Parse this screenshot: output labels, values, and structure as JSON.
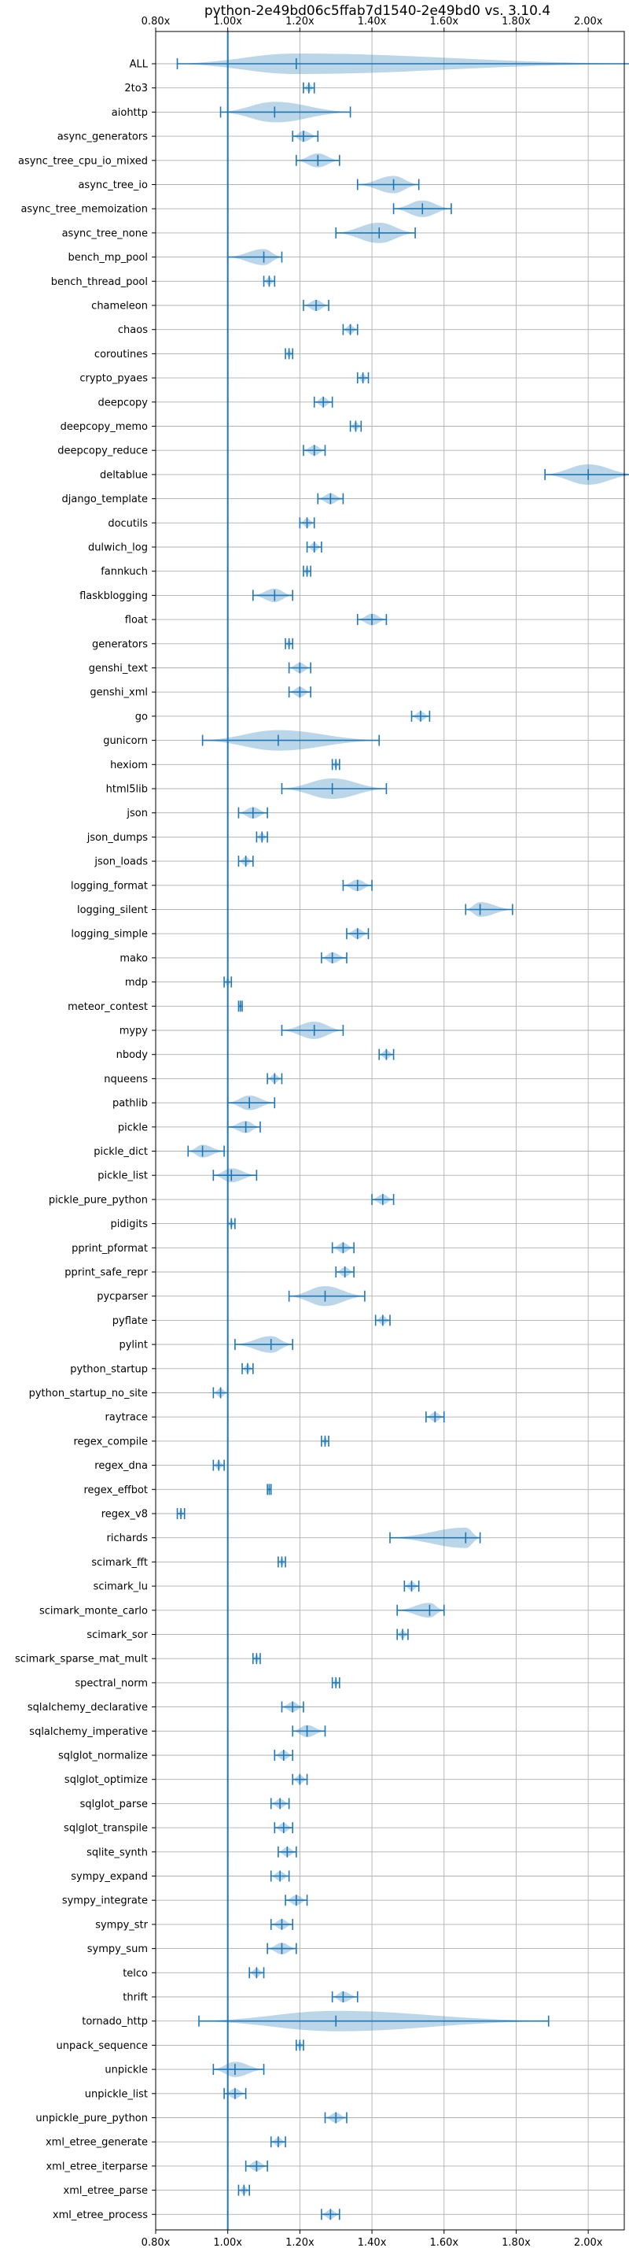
{
  "chart_data": {
    "type": "violin",
    "orientation": "horizontal",
    "title": "python-2e49bd06c5ffab7d1540-2e49bd0 vs. 3.10.4",
    "xlim": [
      0.8,
      2.1
    ],
    "xticks": [
      0.8,
      1.0,
      1.2,
      1.4,
      1.6,
      1.8,
      2.0
    ],
    "xtick_labels": [
      "0.80x",
      "1.00x",
      "1.20x",
      "1.40x",
      "1.60x",
      "1.80x",
      "2.00x"
    ],
    "x_ticks_top_and_bottom": true,
    "grid": true,
    "baseline": 1.0,
    "color": "#1f77b4",
    "categories": [
      {
        "name": "ALL",
        "min": 0.86,
        "max": 2.13,
        "median": 1.19
      },
      {
        "name": "2to3",
        "min": 1.21,
        "max": 1.24,
        "median": 1.225
      },
      {
        "name": "aiohttp",
        "min": 0.98,
        "max": 1.34,
        "median": 1.13
      },
      {
        "name": "async_generators",
        "min": 1.18,
        "max": 1.25,
        "median": 1.21
      },
      {
        "name": "async_tree_cpu_io_mixed",
        "min": 1.19,
        "max": 1.31,
        "median": 1.25
      },
      {
        "name": "async_tree_io",
        "min": 1.36,
        "max": 1.53,
        "median": 1.46
      },
      {
        "name": "async_tree_memoization",
        "min": 1.46,
        "max": 1.62,
        "median": 1.54
      },
      {
        "name": "async_tree_none",
        "min": 1.3,
        "max": 1.52,
        "median": 1.42
      },
      {
        "name": "bench_mp_pool",
        "min": 1.0,
        "max": 1.15,
        "median": 1.1
      },
      {
        "name": "bench_thread_pool",
        "min": 1.1,
        "max": 1.13,
        "median": 1.115
      },
      {
        "name": "chameleon",
        "min": 1.21,
        "max": 1.28,
        "median": 1.245
      },
      {
        "name": "chaos",
        "min": 1.32,
        "max": 1.36,
        "median": 1.34
      },
      {
        "name": "coroutines",
        "min": 1.16,
        "max": 1.18,
        "median": 1.17
      },
      {
        "name": "crypto_pyaes",
        "min": 1.36,
        "max": 1.39,
        "median": 1.375
      },
      {
        "name": "deepcopy",
        "min": 1.24,
        "max": 1.29,
        "median": 1.265
      },
      {
        "name": "deepcopy_memo",
        "min": 1.34,
        "max": 1.37,
        "median": 1.355
      },
      {
        "name": "deepcopy_reduce",
        "min": 1.21,
        "max": 1.27,
        "median": 1.24
      },
      {
        "name": "deltablue",
        "min": 1.88,
        "max": 2.13,
        "median": 2.0
      },
      {
        "name": "django_template",
        "min": 1.25,
        "max": 1.32,
        "median": 1.285
      },
      {
        "name": "docutils",
        "min": 1.2,
        "max": 1.24,
        "median": 1.22
      },
      {
        "name": "dulwich_log",
        "min": 1.22,
        "max": 1.26,
        "median": 1.24
      },
      {
        "name": "fannkuch",
        "min": 1.21,
        "max": 1.23,
        "median": 1.22
      },
      {
        "name": "flaskblogging",
        "min": 1.07,
        "max": 1.18,
        "median": 1.13
      },
      {
        "name": "float",
        "min": 1.36,
        "max": 1.44,
        "median": 1.4
      },
      {
        "name": "generators",
        "min": 1.16,
        "max": 1.18,
        "median": 1.17
      },
      {
        "name": "genshi_text",
        "min": 1.17,
        "max": 1.23,
        "median": 1.2
      },
      {
        "name": "genshi_xml",
        "min": 1.17,
        "max": 1.23,
        "median": 1.2
      },
      {
        "name": "go",
        "min": 1.51,
        "max": 1.56,
        "median": 1.535
      },
      {
        "name": "gunicorn",
        "min": 0.93,
        "max": 1.42,
        "median": 1.14
      },
      {
        "name": "hexiom",
        "min": 1.29,
        "max": 1.31,
        "median": 1.3
      },
      {
        "name": "html5lib",
        "min": 1.15,
        "max": 1.44,
        "median": 1.29
      },
      {
        "name": "json",
        "min": 1.03,
        "max": 1.11,
        "median": 1.07
      },
      {
        "name": "json_dumps",
        "min": 1.08,
        "max": 1.11,
        "median": 1.095
      },
      {
        "name": "json_loads",
        "min": 1.03,
        "max": 1.07,
        "median": 1.05
      },
      {
        "name": "logging_format",
        "min": 1.32,
        "max": 1.4,
        "median": 1.36
      },
      {
        "name": "logging_silent",
        "min": 1.66,
        "max": 1.79,
        "median": 1.7
      },
      {
        "name": "logging_simple",
        "min": 1.33,
        "max": 1.39,
        "median": 1.36
      },
      {
        "name": "mako",
        "min": 1.26,
        "max": 1.33,
        "median": 1.29
      },
      {
        "name": "mdp",
        "min": 0.99,
        "max": 1.01,
        "median": 1.0
      },
      {
        "name": "meteor_contest",
        "min": 1.03,
        "max": 1.04,
        "median": 1.035
      },
      {
        "name": "mypy",
        "min": 1.15,
        "max": 1.32,
        "median": 1.24
      },
      {
        "name": "nbody",
        "min": 1.42,
        "max": 1.46,
        "median": 1.44
      },
      {
        "name": "nqueens",
        "min": 1.11,
        "max": 1.15,
        "median": 1.13
      },
      {
        "name": "pathlib",
        "min": 1.0,
        "max": 1.13,
        "median": 1.06
      },
      {
        "name": "pickle",
        "min": 1.0,
        "max": 1.09,
        "median": 1.05
      },
      {
        "name": "pickle_dict",
        "min": 0.89,
        "max": 0.99,
        "median": 0.93
      },
      {
        "name": "pickle_list",
        "min": 0.96,
        "max": 1.08,
        "median": 1.01
      },
      {
        "name": "pickle_pure_python",
        "min": 1.4,
        "max": 1.46,
        "median": 1.43
      },
      {
        "name": "pidigits",
        "min": 1.0,
        "max": 1.02,
        "median": 1.01
      },
      {
        "name": "pprint_pformat",
        "min": 1.29,
        "max": 1.35,
        "median": 1.32
      },
      {
        "name": "pprint_safe_repr",
        "min": 1.3,
        "max": 1.35,
        "median": 1.325
      },
      {
        "name": "pycparser",
        "min": 1.17,
        "max": 1.38,
        "median": 1.27
      },
      {
        "name": "pyflate",
        "min": 1.41,
        "max": 1.45,
        "median": 1.43
      },
      {
        "name": "pylint",
        "min": 1.02,
        "max": 1.18,
        "median": 1.12
      },
      {
        "name": "python_startup",
        "min": 1.04,
        "max": 1.07,
        "median": 1.055
      },
      {
        "name": "python_startup_no_site",
        "min": 0.96,
        "max": 1.0,
        "median": 0.98
      },
      {
        "name": "raytrace",
        "min": 1.55,
        "max": 1.6,
        "median": 1.575
      },
      {
        "name": "regex_compile",
        "min": 1.26,
        "max": 1.28,
        "median": 1.27
      },
      {
        "name": "regex_dna",
        "min": 0.96,
        "max": 0.99,
        "median": 0.975
      },
      {
        "name": "regex_effbot",
        "min": 1.11,
        "max": 1.12,
        "median": 1.115
      },
      {
        "name": "regex_v8",
        "min": 0.86,
        "max": 0.88,
        "median": 0.87
      },
      {
        "name": "richards",
        "min": 1.45,
        "max": 1.7,
        "median": 1.66
      },
      {
        "name": "scimark_fft",
        "min": 1.14,
        "max": 1.16,
        "median": 1.15
      },
      {
        "name": "scimark_lu",
        "min": 1.49,
        "max": 1.53,
        "median": 1.51
      },
      {
        "name": "scimark_monte_carlo",
        "min": 1.47,
        "max": 1.6,
        "median": 1.56
      },
      {
        "name": "scimark_sor",
        "min": 1.47,
        "max": 1.5,
        "median": 1.485
      },
      {
        "name": "scimark_sparse_mat_mult",
        "min": 1.07,
        "max": 1.09,
        "median": 1.08
      },
      {
        "name": "spectral_norm",
        "min": 1.29,
        "max": 1.31,
        "median": 1.3
      },
      {
        "name": "sqlalchemy_declarative",
        "min": 1.15,
        "max": 1.21,
        "median": 1.18
      },
      {
        "name": "sqlalchemy_imperative",
        "min": 1.18,
        "max": 1.27,
        "median": 1.22
      },
      {
        "name": "sqlglot_normalize",
        "min": 1.13,
        "max": 1.18,
        "median": 1.155
      },
      {
        "name": "sqlglot_optimize",
        "min": 1.18,
        "max": 1.22,
        "median": 1.2
      },
      {
        "name": "sqlglot_parse",
        "min": 1.12,
        "max": 1.17,
        "median": 1.145
      },
      {
        "name": "sqlglot_transpile",
        "min": 1.13,
        "max": 1.18,
        "median": 1.155
      },
      {
        "name": "sqlite_synth",
        "min": 1.14,
        "max": 1.19,
        "median": 1.165
      },
      {
        "name": "sympy_expand",
        "min": 1.12,
        "max": 1.17,
        "median": 1.145
      },
      {
        "name": "sympy_integrate",
        "min": 1.16,
        "max": 1.22,
        "median": 1.19
      },
      {
        "name": "sympy_str",
        "min": 1.12,
        "max": 1.18,
        "median": 1.15
      },
      {
        "name": "sympy_sum",
        "min": 1.11,
        "max": 1.19,
        "median": 1.15
      },
      {
        "name": "telco",
        "min": 1.06,
        "max": 1.1,
        "median": 1.08
      },
      {
        "name": "thrift",
        "min": 1.29,
        "max": 1.36,
        "median": 1.32
      },
      {
        "name": "tornado_http",
        "min": 0.92,
        "max": 1.89,
        "median": 1.3
      },
      {
        "name": "unpack_sequence",
        "min": 1.19,
        "max": 1.21,
        "median": 1.2
      },
      {
        "name": "unpickle",
        "min": 0.96,
        "max": 1.1,
        "median": 1.02
      },
      {
        "name": "unpickle_list",
        "min": 0.99,
        "max": 1.05,
        "median": 1.02
      },
      {
        "name": "unpickle_pure_python",
        "min": 1.27,
        "max": 1.33,
        "median": 1.3
      },
      {
        "name": "xml_etree_generate",
        "min": 1.12,
        "max": 1.16,
        "median": 1.14
      },
      {
        "name": "xml_etree_iterparse",
        "min": 1.05,
        "max": 1.11,
        "median": 1.08
      },
      {
        "name": "xml_etree_parse",
        "min": 1.03,
        "max": 1.06,
        "median": 1.045
      },
      {
        "name": "xml_etree_process",
        "min": 1.26,
        "max": 1.31,
        "median": 1.285
      }
    ]
  }
}
